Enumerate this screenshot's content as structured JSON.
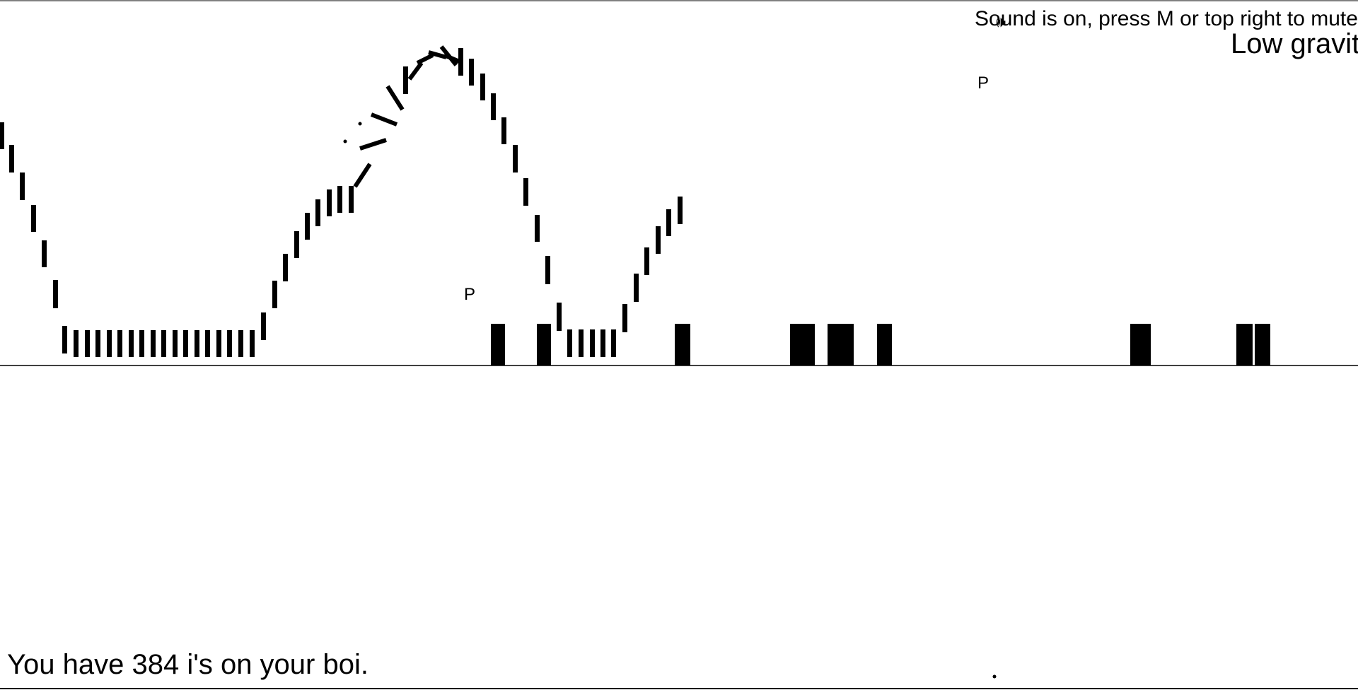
{
  "hud": {
    "sound_text": "Sound is on, press M or top right to mute",
    "mode_text": "Low gravity",
    "counter_text": "You have 384 i's on your boi."
  },
  "sound_toggle": {
    "icon": "speaker-icon",
    "glyph": "🕪"
  },
  "pickups": [
    {
      "label": "P"
    },
    {
      "label": "P"
    }
  ],
  "colors": {
    "background": "#ffffff",
    "ink": "#000000"
  }
}
